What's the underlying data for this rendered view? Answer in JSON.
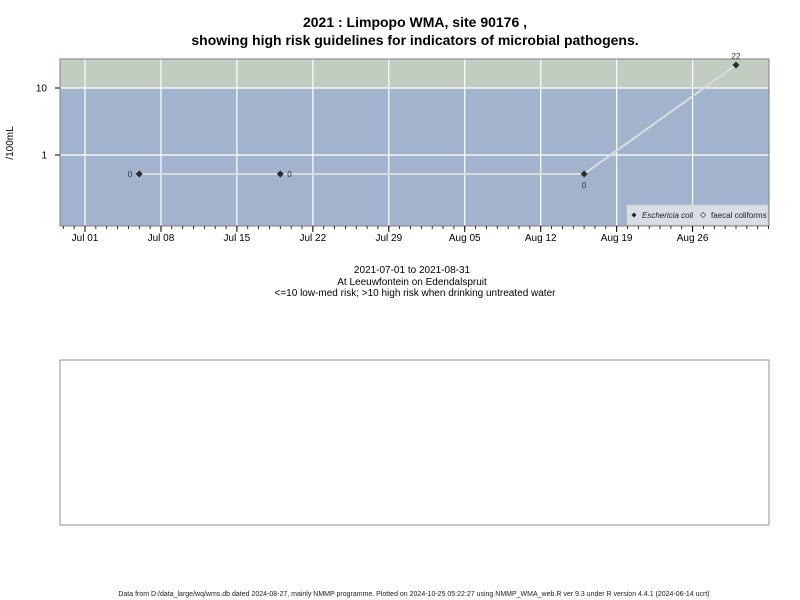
{
  "chart_data": {
    "type": "scatter",
    "title_line1": "2021 : Limpopo WMA, site 90176 ,",
    "title_line2": "showing high risk guidelines for indicators of microbial pathogens.",
    "ylabel": "/100mL",
    "xlabel": "",
    "y_scale": "log",
    "y_ticks": [
      {
        "value": 1,
        "label": "1"
      },
      {
        "value": 10,
        "label": "10"
      }
    ],
    "x_ticks": [
      {
        "date": "2021-07-01",
        "label": "Jul 01"
      },
      {
        "date": "2021-07-08",
        "label": "Jul 08"
      },
      {
        "date": "2021-07-15",
        "label": "Jul 15"
      },
      {
        "date": "2021-07-22",
        "label": "Jul 22"
      },
      {
        "date": "2021-07-29",
        "label": "Jul 29"
      },
      {
        "date": "2021-08-05",
        "label": "Aug 05"
      },
      {
        "date": "2021-08-12",
        "label": "Aug 12"
      },
      {
        "date": "2021-08-19",
        "label": "Aug 19"
      },
      {
        "date": "2021-08-26",
        "label": "Aug 26"
      }
    ],
    "threshold": 10,
    "zones": {
      "low_color": "#a2b4cd",
      "high_color": "#c1cdc1"
    },
    "series": [
      {
        "name": "Eschericia coli",
        "marker": "filled-diamond",
        "line_color": "#dcdcdc",
        "points": [
          {
            "date": "2021-07-06",
            "value": 0,
            "label": "0",
            "label_pos": "left"
          },
          {
            "date": "2021-07-19",
            "value": 0,
            "label": "0",
            "label_pos": "right"
          },
          {
            "date": "2021-08-16",
            "value": 0,
            "label": "0",
            "label_pos": "below"
          },
          {
            "date": "2021-08-30",
            "value": 22,
            "label": "22",
            "label_pos": "above"
          }
        ]
      }
    ],
    "legend": {
      "position": "bottom-right",
      "entries": [
        {
          "label": "Eschericia coli",
          "marker": "filled-diamond"
        },
        {
          "label": "faecal coliforms",
          "marker": "open-diamond"
        }
      ]
    },
    "subtitle_lines": [
      "2021-07-01 to 2021-08-31",
      "At Leeuwfontein on Edendalspruit",
      "<=10 low-med risk; >10 high risk when drinking untreated water"
    ]
  },
  "footer": "Data from D:/data_large/wq/wms.db dated 2024-08-27, mainly NMMP programme. Plotted on 2024-10-25 05:22:27 using NMMP_WMA_web.R ver 9.3 under R version 4.4.1 (2024-06-14 ucrt)"
}
